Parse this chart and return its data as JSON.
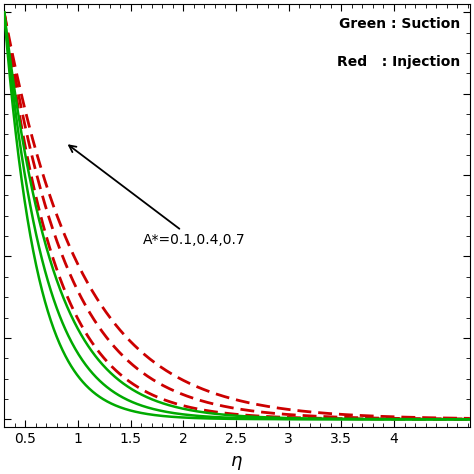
{
  "xlabel": "η",
  "xlim": [
    0.3,
    4.72
  ],
  "ylim": [
    -0.02,
    1.02
  ],
  "xticks": [
    0.5,
    1.0,
    1.5,
    2.0,
    2.5,
    3.0,
    3.5,
    4.0
  ],
  "green_color": "#00aa00",
  "red_color": "#cc0000",
  "legend_text_green": "Green : Suction",
  "legend_text_red": "Red   : Injection",
  "annotation_text": "A*=0.1,0.4,0.7",
  "background_color": "#ffffff",
  "suction_decay": [
    3.2,
    2.6,
    2.15
  ],
  "injection_decay": [
    2.0,
    1.65,
    1.38
  ]
}
